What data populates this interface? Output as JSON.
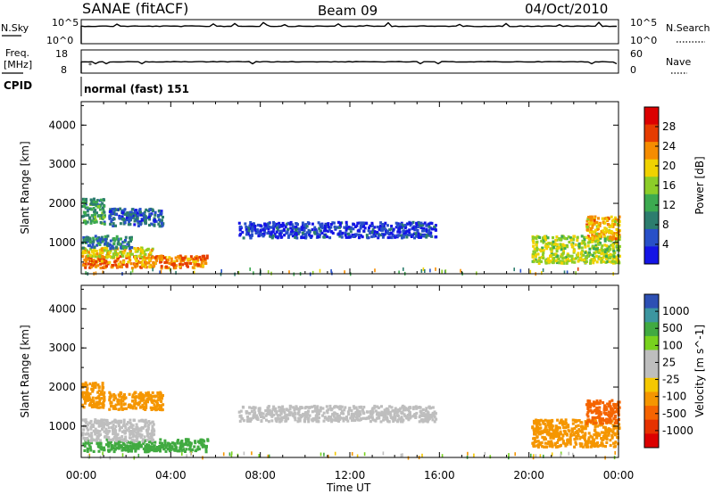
{
  "header": {
    "station": "SANAE (fitACF)",
    "beam": "Beam 09",
    "date": "04/Oct/2010"
  },
  "strips": {
    "nsky_label": "N.Sky",
    "nsky_ticks": [
      "10^5",
      "10^0"
    ],
    "nsearch_label": "N.Search",
    "nsearch_ticks": [
      "10^5",
      "10^0"
    ],
    "freq_label": "Freq.",
    "freq_unit": "[MHz]",
    "freq_ticks": [
      "18",
      "8"
    ],
    "nave_label": "Nave",
    "nave_ticks": [
      "60",
      "0"
    ],
    "cpid_label": "CPID",
    "cpid_text": "normal (fast) 151"
  },
  "colors": {
    "power_scale": [
      "#1414e6",
      "#2850c8",
      "#2d7d6e",
      "#3caa50",
      "#8ccd28",
      "#f0d200",
      "#f58c00",
      "#e63c00",
      "#dc0000"
    ],
    "velocity_scale": [
      "#2d50b4",
      "#3c96a0",
      "#41aa41",
      "#78d21e",
      "#bebebe",
      "#bebebe",
      "#f5c800",
      "#f59600",
      "#f56400",
      "#e63200",
      "#dc0000"
    ]
  },
  "chart_data": [
    {
      "type": "heatmap",
      "name": "power",
      "xlabel": "Time UT",
      "ylabel": "Slant Range [km]",
      "xlim": [
        0,
        24
      ],
      "ylim": [
        200,
        4600
      ],
      "x_ticks": [
        "00:00",
        "04:00",
        "08:00",
        "12:00",
        "16:00",
        "20:00",
        "00:00"
      ],
      "y_ticks": [
        "1000",
        "2000",
        "3000",
        "4000"
      ],
      "colorbar_label": "Power [dB]",
      "colorbar_ticks": [
        "4",
        "8",
        "12",
        "16",
        "20",
        "24",
        "28"
      ],
      "colorbar_range": [
        0,
        30
      ],
      "regions": [
        {
          "t0": 0.0,
          "t1": 5.6,
          "r0": 380,
          "r1": 700,
          "value": 22
        },
        {
          "t0": 0.0,
          "t1": 3.2,
          "r0": 650,
          "r1": 900,
          "value": 18
        },
        {
          "t0": 0.0,
          "t1": 2.2,
          "r0": 880,
          "r1": 1200,
          "value": 8
        },
        {
          "t0": 0.0,
          "t1": 1.0,
          "r0": 1500,
          "r1": 2150,
          "value": 10
        },
        {
          "t0": 1.2,
          "t1": 3.6,
          "r0": 1450,
          "r1": 1900,
          "value": 6
        },
        {
          "t0": 7.0,
          "t1": 15.8,
          "r0": 1150,
          "r1": 1550,
          "value": 4
        },
        {
          "t0": 20.1,
          "t1": 24.0,
          "r0": 500,
          "r1": 1200,
          "value": 16
        },
        {
          "t0": 22.5,
          "t1": 24.0,
          "r0": 1100,
          "r1": 1700,
          "value": 20
        }
      ]
    },
    {
      "type": "heatmap",
      "name": "velocity",
      "xlabel": "Time UT",
      "ylabel": "Slant Range [km]",
      "xlim": [
        0,
        24
      ],
      "ylim": [
        200,
        4600
      ],
      "x_ticks": [
        "00:00",
        "04:00",
        "08:00",
        "12:00",
        "16:00",
        "20:00",
        "00:00"
      ],
      "y_ticks": [
        "1000",
        "2000",
        "3000",
        "4000"
      ],
      "colorbar_label": "Velocity [m s^-1]",
      "colorbar_ticks": [
        "1000",
        "500",
        "100",
        "25",
        "-25",
        "-100",
        "-500",
        "-1000"
      ],
      "regions": [
        {
          "t0": 0.0,
          "t1": 5.6,
          "r0": 380,
          "r1": 700,
          "value": 100
        },
        {
          "t0": 0.0,
          "t1": 3.2,
          "r0": 650,
          "r1": 1200,
          "value": 0
        },
        {
          "t0": 0.0,
          "t1": 1.0,
          "r0": 1500,
          "r1": 2150,
          "value": -100
        },
        {
          "t0": 1.2,
          "t1": 3.6,
          "r0": 1450,
          "r1": 1900,
          "value": -100
        },
        {
          "t0": 7.0,
          "t1": 15.8,
          "r0": 1150,
          "r1": 1550,
          "value": 0
        },
        {
          "t0": 20.1,
          "t1": 24.0,
          "r0": 500,
          "r1": 1200,
          "value": -100
        },
        {
          "t0": 22.5,
          "t1": 24.0,
          "r0": 1100,
          "r1": 1700,
          "value": -500
        }
      ]
    }
  ]
}
